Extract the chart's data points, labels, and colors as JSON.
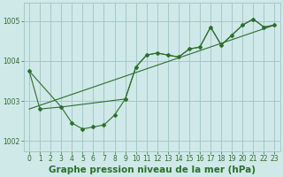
{
  "title": "Graphe pression niveau de la mer (hPa)",
  "background_color": "#cfe8e8",
  "grid_color": "#a0c4c4",
  "line_color": "#2d6e2d",
  "marker_color": "#2d6e2d",
  "ylim": [
    1001.75,
    1005.45
  ],
  "xlim": [
    -0.5,
    23.5
  ],
  "yticks": [
    1002,
    1003,
    1004,
    1005
  ],
  "xticks": [
    0,
    1,
    2,
    3,
    4,
    5,
    6,
    7,
    8,
    9,
    10,
    11,
    12,
    13,
    14,
    15,
    16,
    17,
    18,
    19,
    20,
    21,
    22,
    23
  ],
  "series1_x": [
    0,
    1,
    3,
    4,
    5,
    6,
    7,
    8,
    9,
    10,
    11,
    12,
    13,
    14,
    15,
    16,
    17,
    18,
    19,
    20,
    21,
    22,
    23
  ],
  "series1_y": [
    1003.75,
    1002.8,
    1002.85,
    1002.45,
    1002.3,
    1002.35,
    1002.4,
    1002.65,
    1003.05,
    1003.85,
    1004.15,
    1004.2,
    1004.15,
    1004.1,
    1004.3,
    1004.35,
    1004.85,
    1004.4,
    1004.65,
    1004.9,
    1005.05,
    1004.85,
    1004.9
  ],
  "series2_x": [
    0,
    3,
    9,
    10,
    11,
    12,
    13,
    14,
    15,
    16,
    17,
    18,
    19,
    20,
    21,
    22,
    23
  ],
  "series2_y": [
    1003.75,
    1002.85,
    1003.05,
    1003.85,
    1004.15,
    1004.2,
    1004.15,
    1004.1,
    1004.3,
    1004.35,
    1004.85,
    1004.4,
    1004.65,
    1004.9,
    1005.05,
    1004.85,
    1004.9
  ],
  "series3_x": [
    0,
    23
  ],
  "series3_y": [
    1002.8,
    1004.9
  ],
  "title_fontsize": 7.5,
  "tick_fontsize": 5.5
}
